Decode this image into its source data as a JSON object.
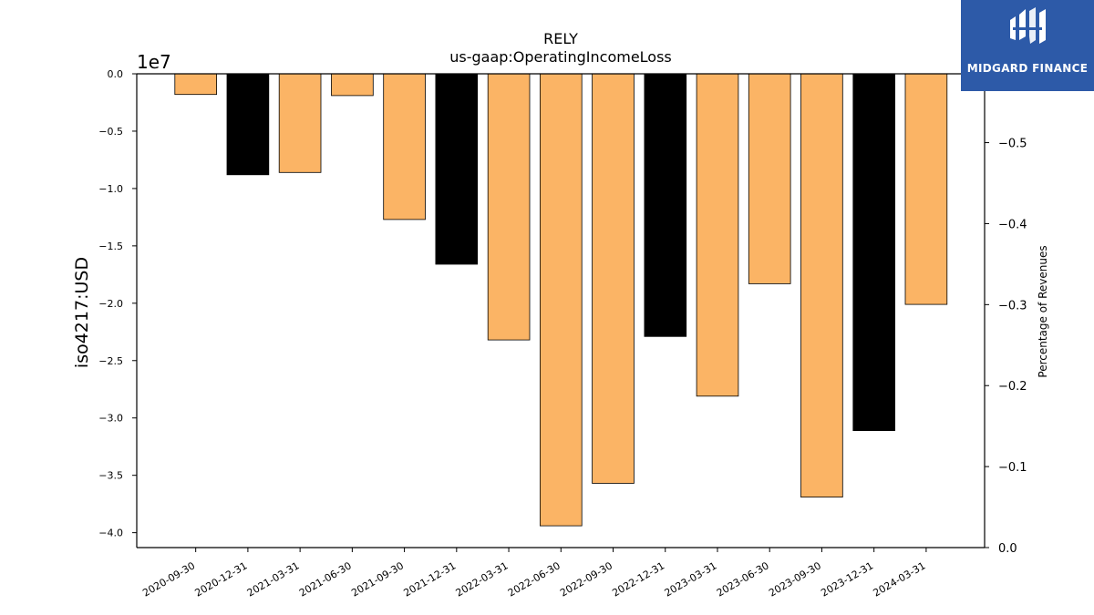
{
  "chart_data": {
    "type": "bar",
    "title": "RELY",
    "subtitle": "us-gaap:OperatingIncomeLoss",
    "ylabel": "iso4217:USD",
    "y_offset_label": "1e7",
    "y2label": "Percentage of Revenues",
    "ylim": [
      -4.13,
      0.0
    ],
    "y2lim": [
      0.0,
      0.585
    ],
    "yticks": [
      0.0,
      -0.5,
      -1.0,
      -1.5,
      -2.0,
      -2.5,
      -3.0,
      -3.5,
      -4.0
    ],
    "ytick_labels": [
      "0.0",
      "−0.5",
      "−1.0",
      "−1.5",
      "−2.0",
      "−2.5",
      "−3.0",
      "−3.5",
      "−4.0"
    ],
    "y2ticks": [
      0.0,
      0.1,
      0.2,
      0.3,
      0.4,
      0.5
    ],
    "y2tick_labels": [
      "0.0",
      "−0.1",
      "−0.2",
      "−0.3",
      "−0.4",
      "−0.5"
    ],
    "categories": [
      "2020-09-30",
      "2020-12-31",
      "2021-03-31",
      "2021-06-30",
      "2021-09-30",
      "2021-12-31",
      "2022-03-31",
      "2022-06-30",
      "2022-09-30",
      "2022-12-31",
      "2023-03-31",
      "2023-06-30",
      "2023-09-30",
      "2023-12-31",
      "2024-03-31"
    ],
    "values": [
      -0.18,
      -0.88,
      -0.86,
      -0.19,
      -1.27,
      -1.66,
      -2.32,
      -3.94,
      -3.57,
      -2.29,
      -2.81,
      -1.83,
      -3.69,
      -3.11,
      -2.01
    ],
    "bar_colors": [
      "#fbb465",
      "#000000",
      "#fbb465",
      "#fbb465",
      "#fbb465",
      "#000000",
      "#fbb465",
      "#fbb465",
      "#fbb465",
      "#000000",
      "#fbb465",
      "#fbb465",
      "#fbb465",
      "#000000",
      "#fbb465"
    ],
    "grid": false
  },
  "logo": {
    "name": "MIDGARD FINANCE"
  }
}
